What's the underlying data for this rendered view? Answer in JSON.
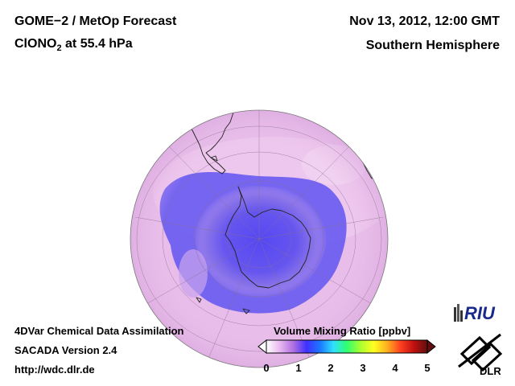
{
  "header": {
    "title_line1": "GOME−2 / MetOp Forecast",
    "title_line2_pre": "ClONO",
    "title_line2_sub": "2",
    "title_line2_post": " at 55.4 hPa",
    "datetime": "Nov 13, 2012, 12:00 GMT",
    "region": "Southern Hemisphere"
  },
  "footer": {
    "system": "4DVar Chemical Data Assimilation",
    "version": "SACADA Version 2.4",
    "url": "http://wdc.dlr.de"
  },
  "colorbar": {
    "title": "Volume Mixing Ratio [ppbv]",
    "min": 0,
    "max": 5,
    "ticks": [
      "0",
      "1",
      "2",
      "3",
      "4",
      "5"
    ],
    "colors": [
      "#ffffff",
      "#e9b8f0",
      "#b070e0",
      "#4030ff",
      "#1a78ff",
      "#30e0ff",
      "#30ff70",
      "#a8ff30",
      "#ffff20",
      "#ffb020",
      "#ff4020",
      "#c01010",
      "#601010"
    ]
  },
  "logos": {
    "riu_text": "RIU",
    "dlr_text": "DLR"
  },
  "colors": {
    "globe_background": "#e6b8e6",
    "low_values": "#6a5cf0",
    "lowest_values": "#4c48f4",
    "coastline": "#222222",
    "grid": "#8a6e8a"
  }
}
